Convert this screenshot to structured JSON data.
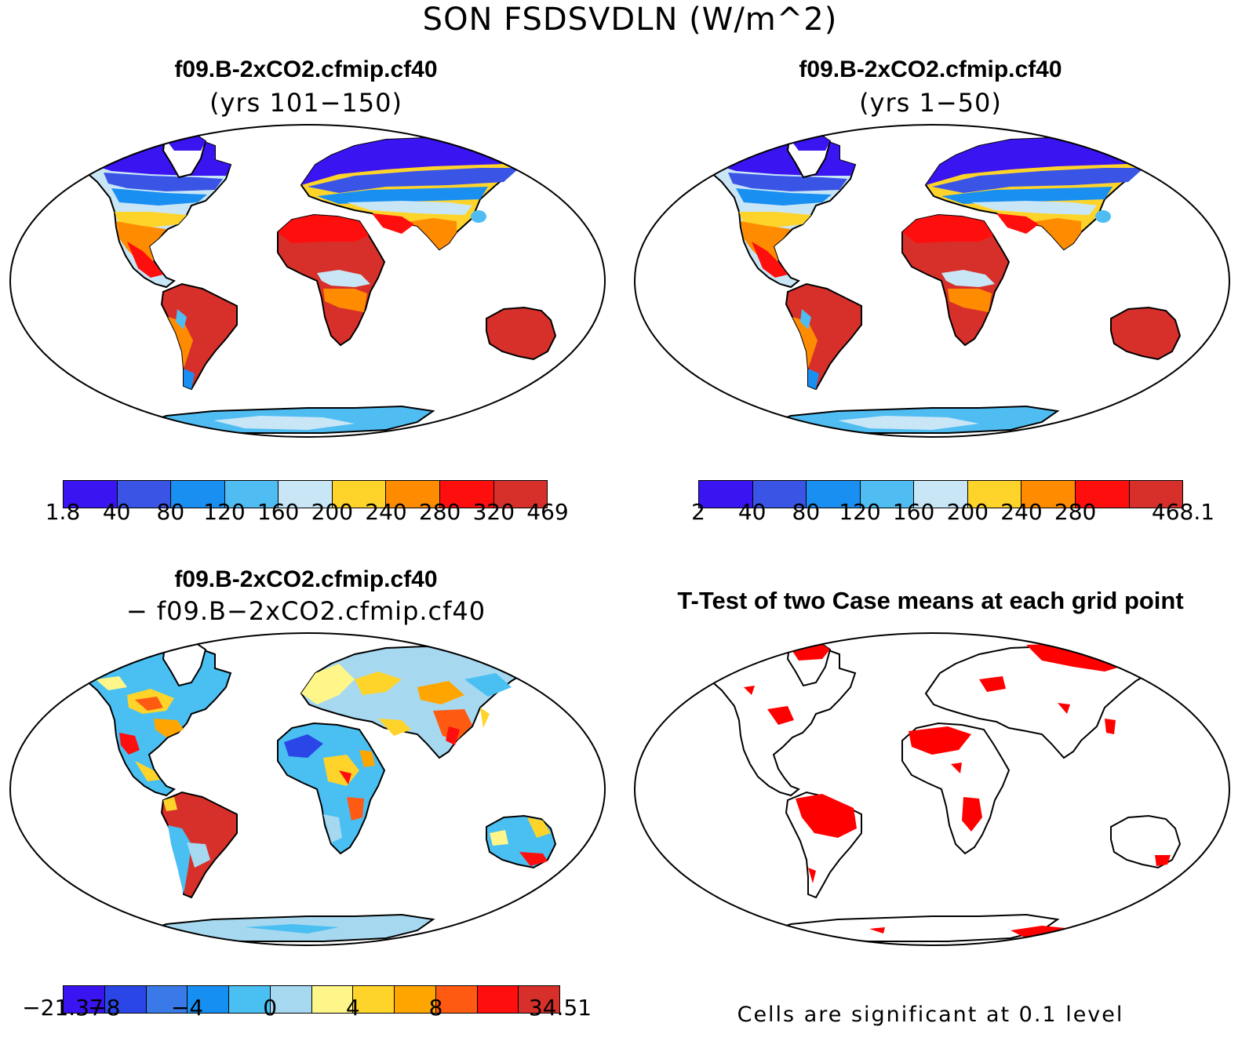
{
  "figure": {
    "title": "SON FSDSVDLN (W/m^2)"
  },
  "panels": {
    "top_left": {
      "case": "f09.B-2xCO2.cfmip.cf40",
      "period": "(yrs 101−150)"
    },
    "top_right": {
      "case": "f09.B-2xCO2.cfmip.cf40",
      "period": "(yrs 1−50)"
    },
    "bottom_left": {
      "case": "f09.B-2xCO2.cfmip.cf40",
      "minus_case": "− f09.B−2xCO2.cfmip.cf40"
    },
    "bottom_right": {
      "title": "T-Test of two Case means at each grid point",
      "note": "Cells are significant at 0.1 level",
      "significant_color": "#ff0000"
    }
  },
  "colorbars": {
    "top_left": {
      "colors": [
        "#3b14f2",
        "#3a55e6",
        "#1a8ff2",
        "#4fbdf2",
        "#c8e6f6",
        "#ffd42a",
        "#ff8c00",
        "#ff0e0e",
        "#d7302a"
      ],
      "labels": [
        "1.8",
        "40",
        "80",
        "120",
        "160",
        "200",
        "240",
        "280",
        "320",
        "469"
      ]
    },
    "top_right": {
      "colors": [
        "#3b14f2",
        "#3a55e6",
        "#1a8ff2",
        "#4fbdf2",
        "#c8e6f6",
        "#ffd42a",
        "#ff8c00",
        "#ff0e0e",
        "#d7302a"
      ],
      "labels": [
        "2",
        "40",
        "80",
        "120",
        "160",
        "200",
        "240",
        "280",
        "",
        "468.1"
      ]
    },
    "bottom_left": {
      "colors": [
        "#3b14f2",
        "#2a46e6",
        "#3a7ae8",
        "#168ff2",
        "#4abff2",
        "#a6d8f0",
        "#fff68a",
        "#ffd42a",
        "#ffa500",
        "#ff5a12",
        "#ff0e0e",
        "#d7302a"
      ],
      "labels": [
        "−21.37",
        "−8",
        "",
        "−4",
        "",
        "0",
        "",
        "4",
        "",
        "8",
        "",
        "34.51"
      ]
    }
  }
}
